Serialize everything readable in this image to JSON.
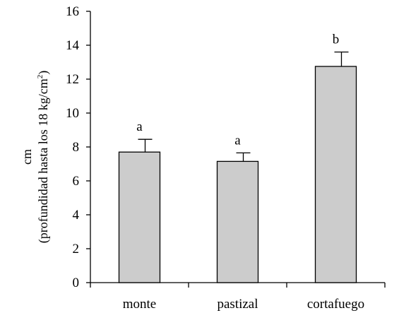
{
  "chart_data": {
    "type": "bar",
    "title": "",
    "xlabel": "",
    "ylabel": {
      "line1": "cm",
      "line2_main": "(profundidad hasta los 18 kg/cm",
      "line2_sup": "2",
      "line2_end": ")"
    },
    "categories": [
      "monte",
      "pastizal",
      "cortafuego"
    ],
    "values": [
      7.7,
      7.15,
      12.75
    ],
    "errors": [
      0.75,
      0.5,
      0.85
    ],
    "significance_labels": [
      "a",
      "a",
      "b"
    ],
    "ylim": [
      0,
      16
    ],
    "yticks": [
      0,
      2,
      4,
      6,
      8,
      10,
      12,
      14,
      16
    ],
    "grid": false,
    "legend": "none",
    "bar_color": "#cccccc",
    "bar_edge_color": "#000000"
  }
}
